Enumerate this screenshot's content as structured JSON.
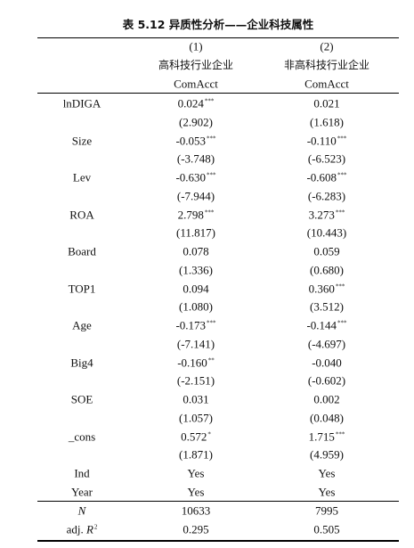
{
  "title": "表 5.12 异质性分析——企业科技属性",
  "header": {
    "numbers": [
      "(1)",
      "(2)"
    ],
    "groups": [
      "高科技行业企业",
      "非高科技行业企业"
    ],
    "dependent": [
      "ComAcct",
      "ComAcct"
    ]
  },
  "rows": [
    {
      "var": "lnDIGA",
      "c1": "0.024",
      "s1": "***",
      "t1": "(2.902)",
      "c2": "0.021",
      "t2": "(1.618)"
    },
    {
      "var": "Size",
      "c1": "-0.053",
      "s1": "***",
      "t1": "(-3.748)",
      "c2": "-0.110",
      "s2": "***",
      "t2": "(-6.523)"
    },
    {
      "var": "Lev",
      "c1": "-0.630",
      "s1": "***",
      "t1": "(-7.944)",
      "c2": "-0.608",
      "s2": "***",
      "t2": "(-6.283)"
    },
    {
      "var": "ROA",
      "c1": "2.798",
      "s1": "***",
      "t1": "(11.817)",
      "c2": "3.273",
      "s2": "***",
      "t2": "(10.443)"
    },
    {
      "var": "Board",
      "c1": "0.078",
      "t1": "(1.336)",
      "c2": "0.059",
      "t2": "(0.680)"
    },
    {
      "var": "TOP1",
      "c1": "0.094",
      "t1": "(1.080)",
      "c2": "0.360",
      "s2": "***",
      "t2": "(3.512)"
    },
    {
      "var": "Age",
      "c1": "-0.173",
      "s1": "***",
      "t1": "(-7.141)",
      "c2": "-0.144",
      "s2": "***",
      "t2": "(-4.697)"
    },
    {
      "var": "Big4",
      "c1": "-0.160",
      "s1": "**",
      "t1": "(-2.151)",
      "c2": "-0.040",
      "t2": "(-0.602)"
    },
    {
      "var": "SOE",
      "c1": "0.031",
      "t1": "(1.057)",
      "c2": "0.002",
      "t2": "(0.048)"
    },
    {
      "var": "_cons",
      "c1": "0.572",
      "s1": "*",
      "t1": "(1.871)",
      "c2": "1.715",
      "s2": "***",
      "t2": "(4.959)"
    }
  ],
  "controls": [
    {
      "var": "Ind",
      "c1": "Yes",
      "c2": "Yes"
    },
    {
      "var": "Year",
      "c1": "Yes",
      "c2": "Yes"
    }
  ],
  "stats": [
    {
      "var": "N",
      "c1": "10633",
      "c2": "7995"
    },
    {
      "prefix": "adj. ",
      "var": "R",
      "sup": "2",
      "c1": "0.295",
      "c2": "0.505"
    }
  ]
}
